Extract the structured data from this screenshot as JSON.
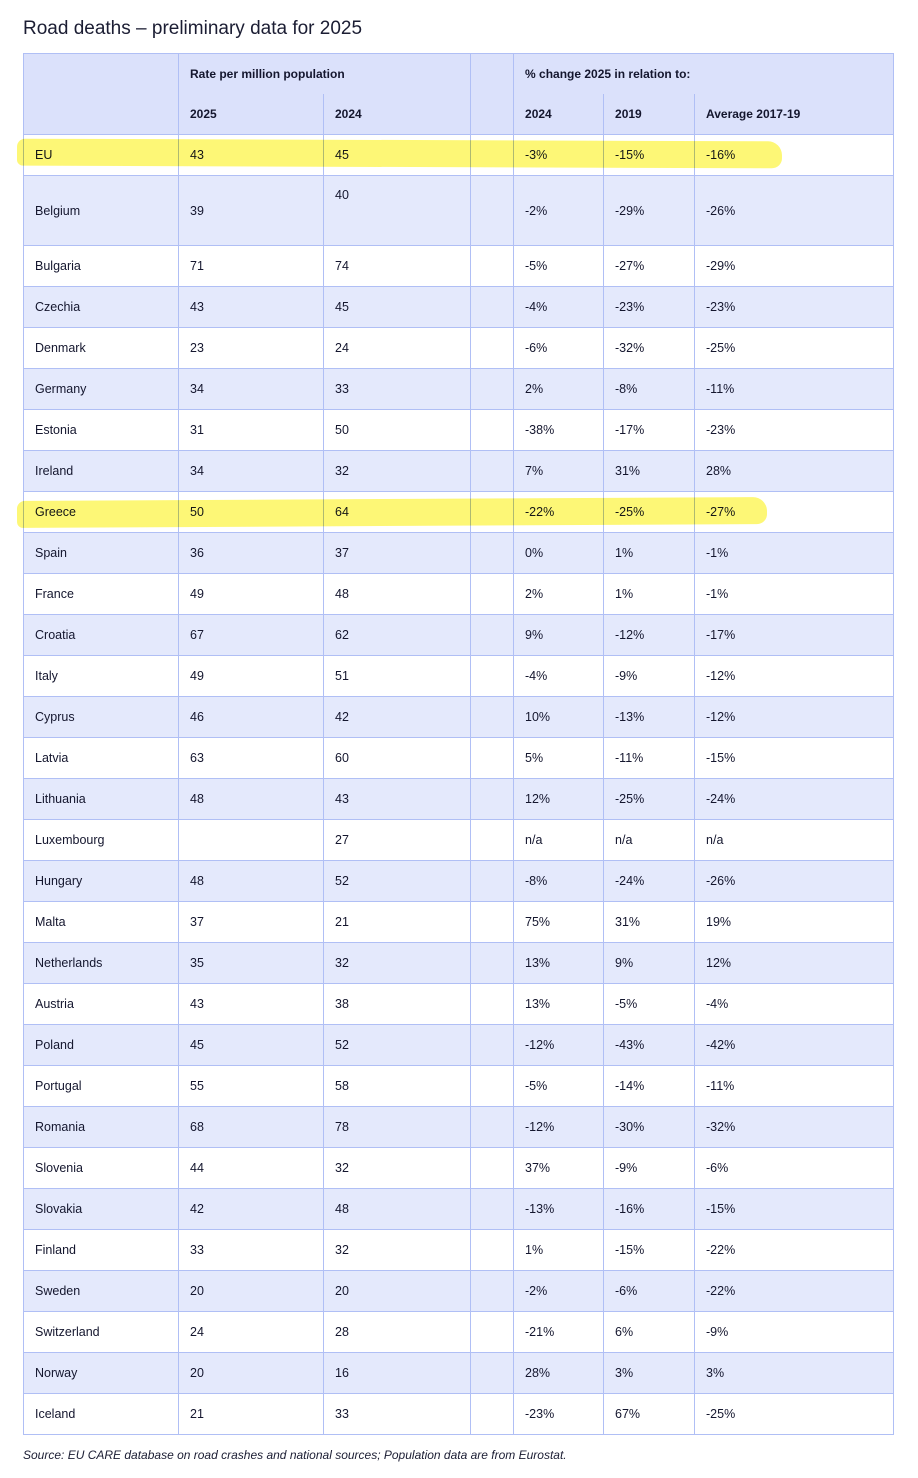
{
  "title": "Road deaths – preliminary data for 2025",
  "header": {
    "group_rate": "Rate per million population",
    "group_change": "% change 2025 in relation to:",
    "col_2025": "2025",
    "col_2024": "2024",
    "chg_2024": "2024",
    "chg_2019": "2019",
    "chg_avg": "Average 2017-19"
  },
  "highlight_color": "#fdf76a",
  "highlighted_rows": [
    "EU",
    "Greece"
  ],
  "rows": [
    [
      "EU",
      "43",
      "45",
      "-3%",
      "-15%",
      "-16%"
    ],
    [
      "Belgium",
      "39",
      "40",
      "-2%",
      "-29%",
      "-26%"
    ],
    [
      "Bulgaria",
      "71",
      "74",
      "-5%",
      "-27%",
      "-29%"
    ],
    [
      "Czechia",
      "43",
      "45",
      "-4%",
      "-23%",
      "-23%"
    ],
    [
      "Denmark",
      "23",
      "24",
      "-6%",
      "-32%",
      "-25%"
    ],
    [
      "Germany",
      "34",
      "33",
      "2%",
      "-8%",
      "-11%"
    ],
    [
      "Estonia",
      "31",
      "50",
      "-38%",
      "-17%",
      "-23%"
    ],
    [
      "Ireland",
      "34",
      "32",
      "7%",
      "31%",
      "28%"
    ],
    [
      "Greece",
      "50",
      "64",
      "-22%",
      "-25%",
      "-27%"
    ],
    [
      "Spain",
      "36",
      "37",
      "0%",
      "1%",
      "-1%"
    ],
    [
      "France",
      "49",
      "48",
      "2%",
      "1%",
      "-1%"
    ],
    [
      "Croatia",
      "67",
      "62",
      "9%",
      "-12%",
      "-17%"
    ],
    [
      "Italy",
      "49",
      "51",
      "-4%",
      "-9%",
      "-12%"
    ],
    [
      "Cyprus",
      "46",
      "42",
      "10%",
      "-13%",
      "-12%"
    ],
    [
      "Latvia",
      "63",
      "60",
      "5%",
      "-11%",
      "-15%"
    ],
    [
      "Lithuania",
      "48",
      "43",
      "12%",
      "-25%",
      "-24%"
    ],
    [
      "Luxembourg",
      "",
      "27",
      "n/a",
      "n/a",
      "n/a"
    ],
    [
      "Hungary",
      "48",
      "52",
      "-8%",
      "-24%",
      "-26%"
    ],
    [
      "Malta",
      "37",
      "21",
      "75%",
      "31%",
      "19%"
    ],
    [
      "Netherlands",
      "35",
      "32",
      "13%",
      "9%",
      "12%"
    ],
    [
      "Austria",
      "43",
      "38",
      "13%",
      "-5%",
      "-4%"
    ],
    [
      "Poland",
      "45",
      "52",
      "-12%",
      "-43%",
      "-42%"
    ],
    [
      "Portugal",
      "55",
      "58",
      "-5%",
      "-14%",
      "-11%"
    ],
    [
      "Romania",
      "68",
      "78",
      "-12%",
      "-30%",
      "-32%"
    ],
    [
      "Slovenia",
      "44",
      "32",
      "37%",
      "-9%",
      "-6%"
    ],
    [
      "Slovakia",
      "42",
      "48",
      "-13%",
      "-16%",
      "-15%"
    ],
    [
      "Finland",
      "33",
      "32",
      "1%",
      "-15%",
      "-22%"
    ],
    [
      "Sweden",
      "20",
      "20",
      "-2%",
      "-6%",
      "-22%"
    ],
    [
      "Switzerland",
      "24",
      "28",
      "-21%",
      "6%",
      "-9%"
    ],
    [
      "Norway",
      "20",
      "16",
      "28%",
      "3%",
      "3%"
    ],
    [
      "Iceland",
      "21",
      "33",
      "-23%",
      "67%",
      "-25%"
    ]
  ],
  "source": "Source: EU CARE database on road crashes and national sources; Population data are from Eurostat."
}
